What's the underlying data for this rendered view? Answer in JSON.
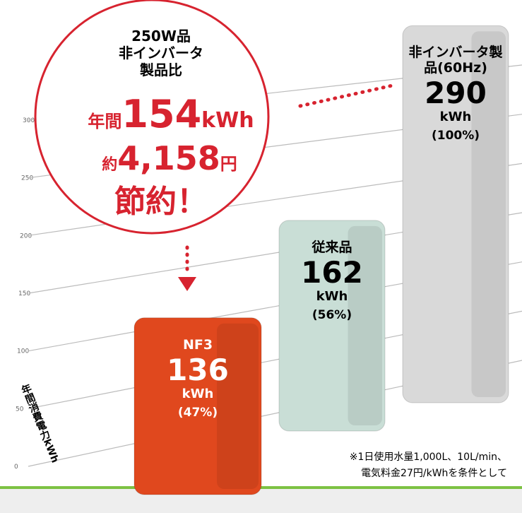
{
  "chart_data": {
    "type": "bar",
    "categories": [
      "NF3",
      "従来品",
      "非インバータ製品(60Hz)"
    ],
    "values": [
      136,
      162,
      290
    ],
    "unit": "kWh",
    "percents": [
      47,
      56,
      100
    ],
    "percent_labels": [
      "(47%)",
      "(56%)",
      "(100%)"
    ],
    "colors": [
      "#e0481e",
      "#c9ded6",
      "#d9d9d9"
    ],
    "ylim": [
      0,
      300
    ],
    "yticks": [
      0,
      50,
      100,
      150,
      200,
      250,
      300
    ],
    "ylabel": "年間消費電力kWh",
    "callout": {
      "lines": [
        "250W品",
        "非インバータ",
        "製品比"
      ],
      "prefix1": "年間",
      "kwh": 154,
      "unit1": "kWh",
      "prefix2": "約",
      "yen": {
        "value": 4158,
        "label": "4,158"
      },
      "unit2": "円",
      "tagline": "節約！"
    },
    "note": [
      "※1日使用水量1,000L、10L/min、",
      "電気料金27円/kWhを条件として"
    ]
  }
}
